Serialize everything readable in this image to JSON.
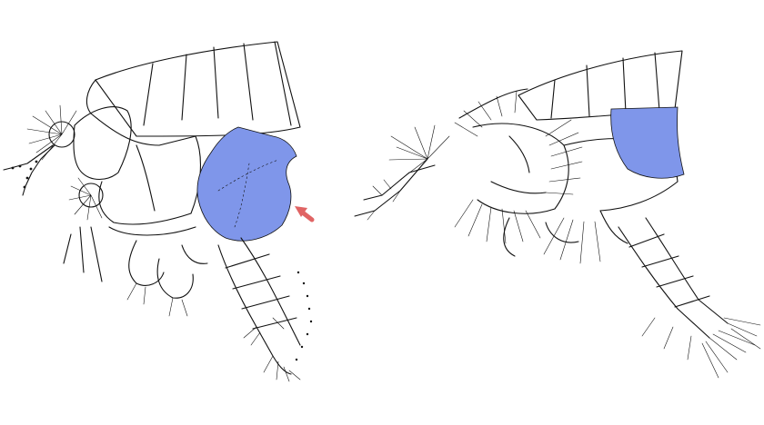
{
  "figure": {
    "panels": [
      {
        "highlight_color": "#7f96ea"
      },
      {
        "highlight_color": "#7f96ea"
      }
    ],
    "arrow_color": "#e06464",
    "line_color": "#111111",
    "background": "#ffffff"
  }
}
